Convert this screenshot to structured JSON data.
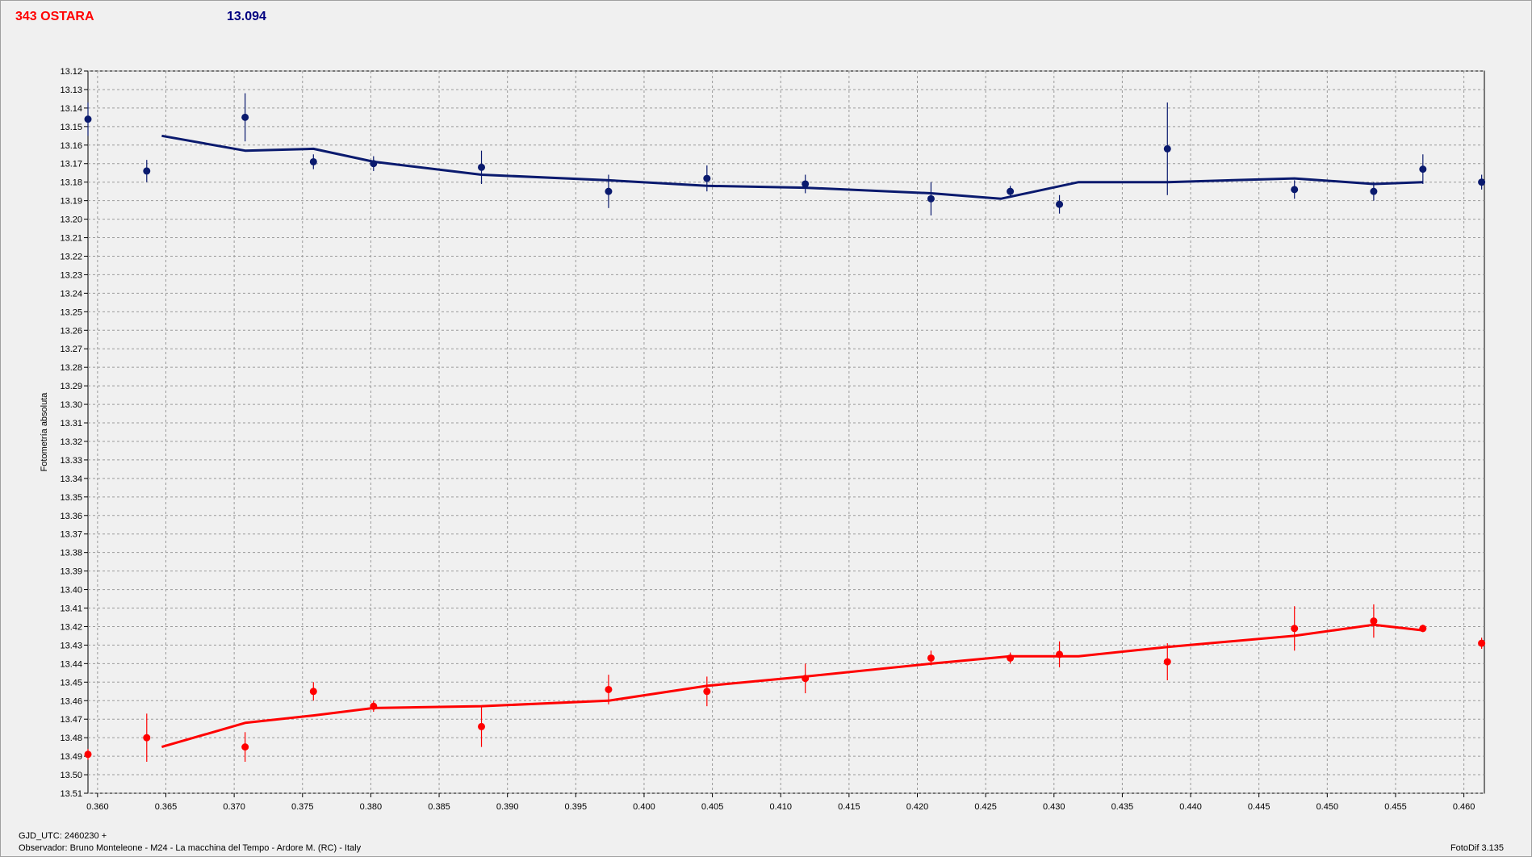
{
  "header": {
    "title": "343 OSTARA",
    "reference_magnitude": "13.094"
  },
  "footer": {
    "gjd_label": "GJD_UTC: 2460230 +",
    "observer": "Observador: Bruno Monteleone - M24 - La macchina del Tempo - Ardore M. (RC) - Italy",
    "version": "FotoDif 3.135"
  },
  "colors": {
    "upper_series": "#0a1a6e",
    "lower_series": "#ff0000",
    "grid": "#9a9a9a",
    "background": "#f0f0f0"
  },
  "chart_data": {
    "type": "scatter",
    "title": "343 OSTARA",
    "ylabel": "Fotometría absoluta",
    "xlabel": "",
    "xlim": [
      0.3593,
      0.4615
    ],
    "ylim": [
      13.51,
      13.12
    ],
    "y_inverted": true,
    "grid": true,
    "x_ticks": [
      "0.360",
      "0.365",
      "0.370",
      "0.375",
      "0.380",
      "0.385",
      "0.390",
      "0.395",
      "0.400",
      "0.405",
      "0.410",
      "0.415",
      "0.420",
      "0.425",
      "0.430",
      "0.435",
      "0.440",
      "0.445",
      "0.450",
      "0.455",
      "0.460"
    ],
    "y_ticks": [
      "13.12",
      "13.13",
      "13.14",
      "13.15",
      "13.16",
      "13.17",
      "13.18",
      "13.19",
      "13.20",
      "13.21",
      "13.22",
      "13.23",
      "13.24",
      "13.25",
      "13.26",
      "13.27",
      "13.28",
      "13.29",
      "13.30",
      "13.31",
      "13.32",
      "13.33",
      "13.34",
      "13.35",
      "13.36",
      "13.37",
      "13.38",
      "13.39",
      "13.40",
      "13.41",
      "13.42",
      "13.43",
      "13.44",
      "13.45",
      "13.46",
      "13.47",
      "13.48",
      "13.49",
      "13.50",
      "13.51"
    ],
    "series": [
      {
        "color": "#0a1a6e",
        "points": [
          {
            "x": 0.3593,
            "y": 13.146,
            "err": 0.009
          },
          {
            "x": 0.3636,
            "y": 13.174,
            "err": 0.006
          },
          {
            "x": 0.3708,
            "y": 13.145,
            "err": 0.013
          },
          {
            "x": 0.3758,
            "y": 13.169,
            "err": 0.004
          },
          {
            "x": 0.3802,
            "y": 13.17,
            "err": 0.004
          },
          {
            "x": 0.3881,
            "y": 13.172,
            "err": 0.009
          },
          {
            "x": 0.3974,
            "y": 13.185,
            "err": 0.009
          },
          {
            "x": 0.4046,
            "y": 13.178,
            "err": 0.007
          },
          {
            "x": 0.4118,
            "y": 13.181,
            "err": 0.005
          },
          {
            "x": 0.421,
            "y": 13.189,
            "err": 0.009
          },
          {
            "x": 0.4268,
            "y": 13.185,
            "err": 0.003
          },
          {
            "x": 0.4304,
            "y": 13.192,
            "err": 0.005
          },
          {
            "x": 0.4383,
            "y": 13.162,
            "err": 0.025
          },
          {
            "x": 0.4476,
            "y": 13.184,
            "err": 0.005
          },
          {
            "x": 0.4534,
            "y": 13.185,
            "err": 0.005
          },
          {
            "x": 0.457,
            "y": 13.173,
            "err": 0.008
          },
          {
            "x": 0.4613,
            "y": 13.18,
            "err": 0.004
          }
        ],
        "fit": [
          {
            "x": 0.3647,
            "y": 13.155
          },
          {
            "x": 0.3708,
            "y": 13.163
          },
          {
            "x": 0.3758,
            "y": 13.162
          },
          {
            "x": 0.3802,
            "y": 13.169
          },
          {
            "x": 0.3881,
            "y": 13.176
          },
          {
            "x": 0.3974,
            "y": 13.179
          },
          {
            "x": 0.4046,
            "y": 13.182
          },
          {
            "x": 0.4118,
            "y": 13.183
          },
          {
            "x": 0.421,
            "y": 13.186
          },
          {
            "x": 0.4261,
            "y": 13.189
          },
          {
            "x": 0.4318,
            "y": 13.18
          },
          {
            "x": 0.4383,
            "y": 13.18
          },
          {
            "x": 0.4476,
            "y": 13.178
          },
          {
            "x": 0.4534,
            "y": 13.181
          },
          {
            "x": 0.457,
            "y": 13.18
          }
        ]
      },
      {
        "color": "#ff0000",
        "points": [
          {
            "x": 0.3593,
            "y": 13.489,
            "err": 0.003
          },
          {
            "x": 0.3636,
            "y": 13.48,
            "err": 0.013
          },
          {
            "x": 0.3708,
            "y": 13.485,
            "err": 0.008
          },
          {
            "x": 0.3758,
            "y": 13.455,
            "err": 0.005
          },
          {
            "x": 0.3802,
            "y": 13.463,
            "err": 0.003
          },
          {
            "x": 0.3881,
            "y": 13.474,
            "err": 0.011
          },
          {
            "x": 0.3974,
            "y": 13.454,
            "err": 0.008
          },
          {
            "x": 0.4046,
            "y": 13.455,
            "err": 0.008
          },
          {
            "x": 0.4118,
            "y": 13.448,
            "err": 0.008
          },
          {
            "x": 0.421,
            "y": 13.437,
            "err": 0.004
          },
          {
            "x": 0.4268,
            "y": 13.437,
            "err": 0.003
          },
          {
            "x": 0.4304,
            "y": 13.435,
            "err": 0.007
          },
          {
            "x": 0.4383,
            "y": 13.439,
            "err": 0.01
          },
          {
            "x": 0.4476,
            "y": 13.421,
            "err": 0.012
          },
          {
            "x": 0.4534,
            "y": 13.417,
            "err": 0.009
          },
          {
            "x": 0.457,
            "y": 13.421,
            "err": 0.002
          },
          {
            "x": 0.4613,
            "y": 13.429,
            "err": 0.003
          }
        ],
        "fit": [
          {
            "x": 0.3647,
            "y": 13.485
          },
          {
            "x": 0.3708,
            "y": 13.472
          },
          {
            "x": 0.3758,
            "y": 13.468
          },
          {
            "x": 0.3802,
            "y": 13.464
          },
          {
            "x": 0.3881,
            "y": 13.463
          },
          {
            "x": 0.3974,
            "y": 13.46
          },
          {
            "x": 0.4046,
            "y": 13.452
          },
          {
            "x": 0.4118,
            "y": 13.447
          },
          {
            "x": 0.421,
            "y": 13.44
          },
          {
            "x": 0.4268,
            "y": 13.436
          },
          {
            "x": 0.4318,
            "y": 13.436
          },
          {
            "x": 0.4383,
            "y": 13.431
          },
          {
            "x": 0.4476,
            "y": 13.425
          },
          {
            "x": 0.4534,
            "y": 13.419
          },
          {
            "x": 0.457,
            "y": 13.422
          }
        ]
      }
    ]
  }
}
